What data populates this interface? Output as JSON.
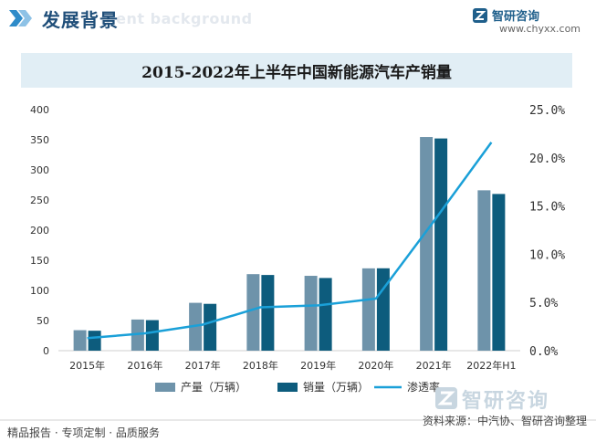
{
  "header": {
    "title": "发展背景",
    "subtitle_watermark": "ment background",
    "brand_name": "智研咨询",
    "brand_url": "www.chyxx.com"
  },
  "chart_data": {
    "type": "bar",
    "title": "2015-2022年上半年中国新能源汽车产销量",
    "categories": [
      "2015年",
      "2016年",
      "2017年",
      "2018年",
      "2019年",
      "2020年",
      "2021年",
      "2022年H1"
    ],
    "series": [
      {
        "name": "产量（万辆）",
        "type": "bar",
        "axis": "left",
        "color": "#6e93aa",
        "values": [
          34.0,
          51.7,
          79.4,
          127.0,
          124.2,
          136.6,
          354.5,
          266.1
        ]
      },
      {
        "name": "销量（万辆）",
        "type": "bar",
        "axis": "left",
        "color": "#0d5c7d",
        "values": [
          33.1,
          50.7,
          77.7,
          125.6,
          120.6,
          136.7,
          352.1,
          260.0
        ]
      },
      {
        "name": "渗透率",
        "type": "line",
        "axis": "right",
        "color": "#1aa0d8",
        "values": [
          1.3,
          1.8,
          2.7,
          4.5,
          4.7,
          5.4,
          13.4,
          21.6
        ]
      }
    ],
    "y_left": {
      "min": 0,
      "max": 400,
      "ticks": [
        "0",
        "50",
        "100",
        "150",
        "200",
        "250",
        "300",
        "350",
        "400"
      ]
    },
    "y_right": {
      "min": 0,
      "max": 25,
      "ticks": [
        "0.0%",
        "5.0%",
        "10.0%",
        "15.0%",
        "20.0%",
        "25.0%"
      ]
    },
    "legend_position": "bottom",
    "grid": false
  },
  "footer": {
    "left": "精品报告 · 专项定制 · 品质服务",
    "right": "资料来源：中汽协、智研咨询整理",
    "watermark": "智研咨询"
  }
}
